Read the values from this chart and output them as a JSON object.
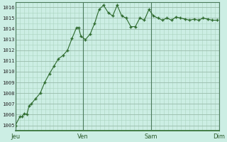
{
  "background_color": "#cceee4",
  "plot_bg_color": "#cceee4",
  "line_color": "#2d6a2d",
  "marker_color": "#2d6a2d",
  "grid_color_minor": "#aad4c0",
  "grid_color_major": "#99bbaa",
  "vline_color": "#4a7a5a",
  "ylim": [
    1004.5,
    1016.5
  ],
  "yticks": [
    1005,
    1006,
    1007,
    1008,
    1009,
    1010,
    1011,
    1012,
    1013,
    1014,
    1015,
    1016
  ],
  "xtick_labels": [
    "| Jeu",
    "| Ven",
    "| Sam",
    "| Dim"
  ],
  "xtick_positions": [
    0.0,
    0.333,
    0.667,
    1.0
  ],
  "x_values": [
    0.0,
    0.022,
    0.033,
    0.044,
    0.056,
    0.067,
    0.078,
    0.1,
    0.122,
    0.144,
    0.167,
    0.189,
    0.211,
    0.233,
    0.256,
    0.278,
    0.3,
    0.311,
    0.322,
    0.344,
    0.367,
    0.389,
    0.411,
    0.433,
    0.456,
    0.478,
    0.5,
    0.522,
    0.544,
    0.567,
    0.589,
    0.611,
    0.633,
    0.656,
    0.678,
    0.7,
    0.722,
    0.744,
    0.767,
    0.789,
    0.811,
    0.833,
    0.856,
    0.878,
    0.9,
    0.922,
    0.944,
    0.967,
    0.989
  ],
  "y_values": [
    1005.0,
    1005.8,
    1005.8,
    1006.1,
    1006.0,
    1006.8,
    1007.0,
    1007.5,
    1008.0,
    1009.0,
    1009.8,
    1010.5,
    1011.2,
    1011.5,
    1012.0,
    1013.1,
    1014.1,
    1014.1,
    1013.3,
    1013.0,
    1013.5,
    1014.5,
    1015.8,
    1016.2,
    1015.5,
    1015.2,
    1016.2,
    1015.2,
    1015.0,
    1014.2,
    1014.2,
    1015.0,
    1014.8,
    1015.8,
    1015.2,
    1015.0,
    1014.8,
    1015.0,
    1014.8,
    1015.1,
    1015.0,
    1014.9,
    1014.8,
    1014.9,
    1014.8,
    1015.0,
    1014.9,
    1014.8,
    1014.8
  ]
}
